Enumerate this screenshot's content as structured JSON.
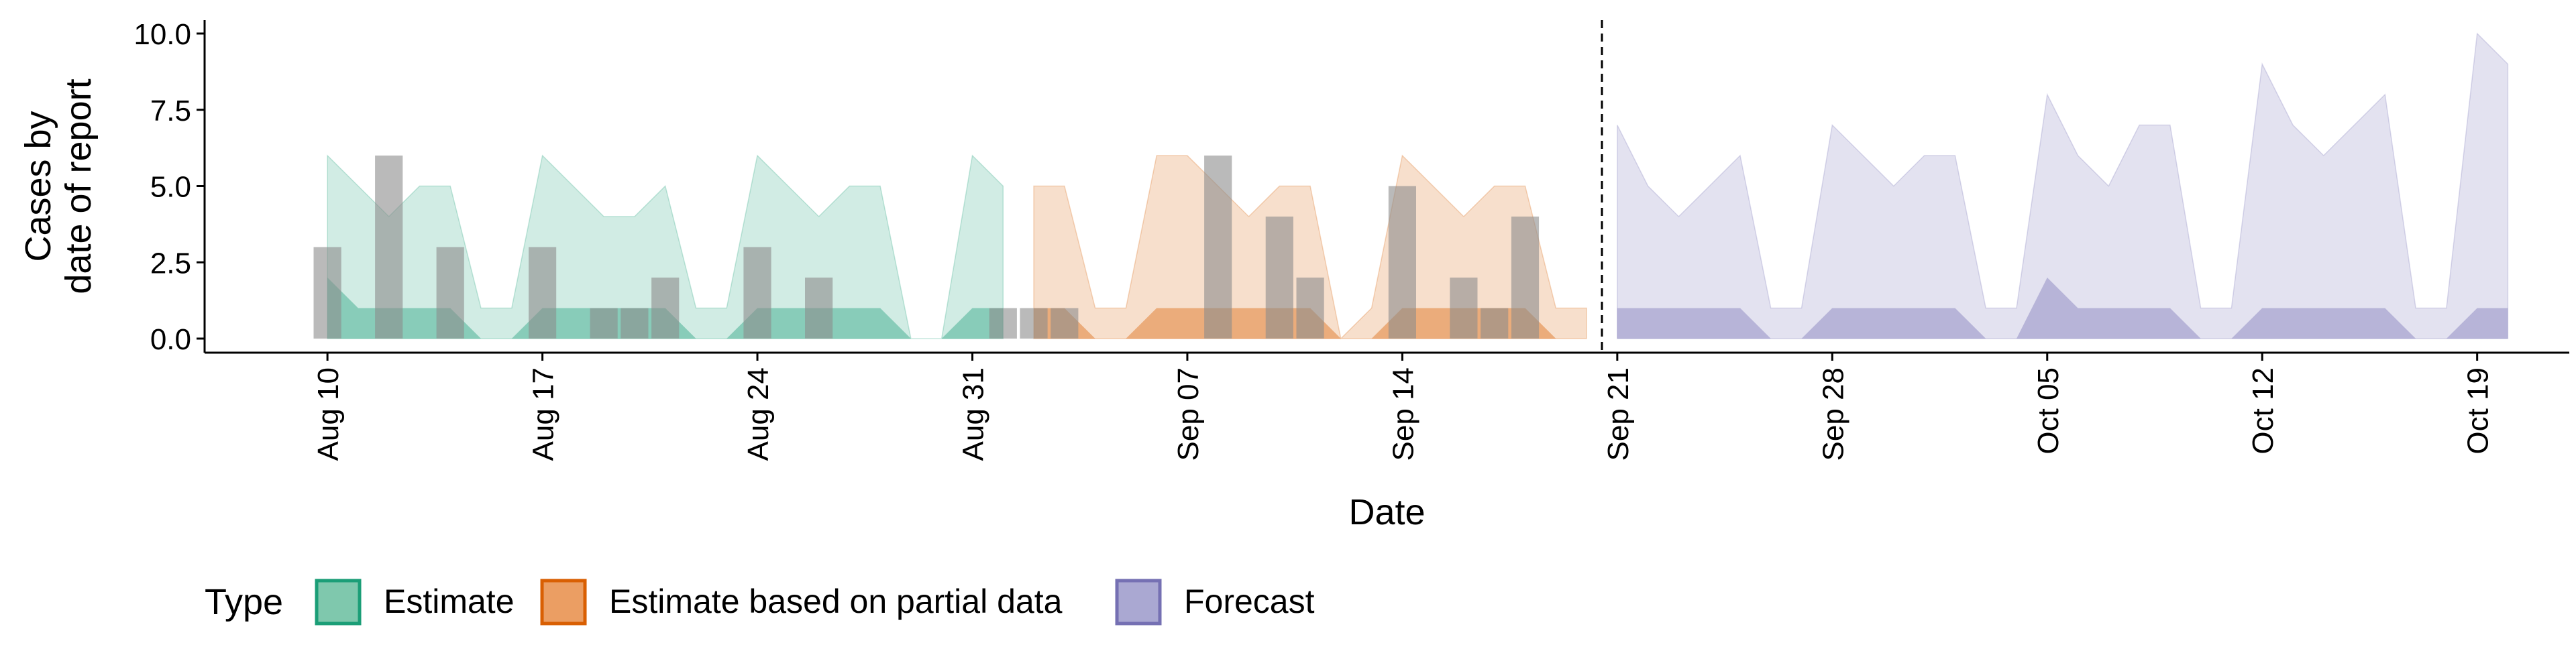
{
  "chart_data": {
    "type": "area",
    "xlabel": "Date",
    "ylabel_lines": [
      "Cases by",
      "date of report"
    ],
    "ylim": [
      0,
      10
    ],
    "y_ticks": [
      0,
      2.5,
      5,
      7.5,
      10
    ],
    "y_tick_labels": [
      "0.0",
      "2.5",
      "5.0",
      "7.5",
      "10.0"
    ],
    "x_range": [
      "2020-08-06",
      "2020-10-22"
    ],
    "x_ticks": [
      "2020-08-10",
      "2020-08-17",
      "2020-08-24",
      "2020-08-31",
      "2020-09-07",
      "2020-09-14",
      "2020-09-21",
      "2020-09-28",
      "2020-10-05",
      "2020-10-12",
      "2020-10-19"
    ],
    "x_tick_labels": [
      "Aug 10",
      "Aug 17",
      "Aug 24",
      "Aug 31",
      "Sep 07",
      "Sep 14",
      "Sep 21",
      "Sep 28",
      "Oct 05",
      "Oct 12",
      "Oct 19"
    ],
    "forecast_date": "2020-09-20",
    "grid": false,
    "legend": {
      "title": "Type",
      "position": "bottom-left",
      "items": [
        {
          "label": "Estimate",
          "fill": "#7fc8ad",
          "stroke": "#1b9e77"
        },
        {
          "label": "Estimate based on partial data",
          "fill": "#eb9e63",
          "stroke": "#d95f02"
        },
        {
          "label": "Forecast",
          "fill": "#aaa8d2",
          "stroke": "#7570b3"
        }
      ]
    },
    "colors": {
      "Estimate": "#1b9e77",
      "Estimate based on partial data": "#d95f02",
      "Forecast": "#7570b3",
      "bars": "#8c8c8c"
    },
    "reported_cases": [
      {
        "date": "2020-08-10",
        "value": 3
      },
      {
        "date": "2020-08-12",
        "value": 6
      },
      {
        "date": "2020-08-14",
        "value": 3
      },
      {
        "date": "2020-08-17",
        "value": 3
      },
      {
        "date": "2020-08-19",
        "value": 1
      },
      {
        "date": "2020-08-20",
        "value": 1
      },
      {
        "date": "2020-08-21",
        "value": 2
      },
      {
        "date": "2020-08-24",
        "value": 3
      },
      {
        "date": "2020-08-26",
        "value": 2
      },
      {
        "date": "2020-09-01",
        "value": 1
      },
      {
        "date": "2020-09-02",
        "value": 1
      },
      {
        "date": "2020-09-03",
        "value": 1
      },
      {
        "date": "2020-09-08",
        "value": 6
      },
      {
        "date": "2020-09-10",
        "value": 4
      },
      {
        "date": "2020-09-11",
        "value": 2
      },
      {
        "date": "2020-09-14",
        "value": 5
      },
      {
        "date": "2020-09-16",
        "value": 2
      },
      {
        "date": "2020-09-17",
        "value": 1
      },
      {
        "date": "2020-09-18",
        "value": 4
      }
    ],
    "series": [
      {
        "name": "Estimate",
        "segments": [
          {
            "x": [
              "2020-08-10",
              "2020-08-11",
              "2020-08-12",
              "2020-08-13",
              "2020-08-14",
              "2020-08-15",
              "2020-08-16",
              "2020-08-17",
              "2020-08-18",
              "2020-08-19",
              "2020-08-20",
              "2020-08-21",
              "2020-08-22",
              "2020-08-23",
              "2020-08-24",
              "2020-08-25",
              "2020-08-26",
              "2020-08-27",
              "2020-08-28",
              "2020-08-29",
              "2020-08-30",
              "2020-08-31",
              "2020-09-01"
            ],
            "upper_90": [
              6,
              5,
              4,
              5,
              5,
              1,
              1,
              6,
              5,
              4,
              4,
              5,
              1,
              1,
              6,
              5,
              4,
              5,
              5,
              0,
              0,
              6,
              5
            ],
            "lower_90": [
              0,
              0,
              0,
              0,
              0,
              0,
              0,
              0,
              0,
              0,
              0,
              0,
              0,
              0,
              0,
              0,
              0,
              0,
              0,
              0,
              0,
              0,
              0
            ],
            "upper_50": [
              2,
              1,
              1,
              1,
              1,
              0,
              0,
              1,
              1,
              1,
              1,
              1,
              0,
              0,
              1,
              1,
              1,
              1,
              1,
              0,
              0,
              1,
              1
            ],
            "lower_50": [
              0,
              0,
              0,
              0,
              0,
              0,
              0,
              0,
              0,
              0,
              0,
              0,
              0,
              0,
              0,
              0,
              0,
              0,
              0,
              0,
              0,
              0,
              0
            ]
          }
        ]
      },
      {
        "name": "Estimate based on partial data",
        "segments": [
          {
            "x": [
              "2020-09-02",
              "2020-09-03",
              "2020-09-04",
              "2020-09-05",
              "2020-09-06",
              "2020-09-07",
              "2020-09-08",
              "2020-09-09",
              "2020-09-10",
              "2020-09-11",
              "2020-09-12",
              "2020-09-13",
              "2020-09-14",
              "2020-09-15",
              "2020-09-16",
              "2020-09-17",
              "2020-09-18",
              "2020-09-19",
              "2020-09-20"
            ],
            "upper_90": [
              5,
              5,
              1,
              1,
              6,
              6,
              5,
              4,
              5,
              5,
              0,
              1,
              6,
              5,
              4,
              5,
              5,
              1,
              1
            ],
            "lower_90": [
              0,
              0,
              0,
              0,
              0,
              0,
              0,
              0,
              0,
              0,
              0,
              0,
              0,
              0,
              0,
              0,
              0,
              0,
              0
            ],
            "upper_50": [
              1,
              1,
              0,
              0,
              1,
              1,
              1,
              1,
              1,
              1,
              0,
              0,
              1,
              1,
              1,
              1,
              1,
              0,
              0
            ],
            "lower_50": [
              0,
              0,
              0,
              0,
              0,
              0,
              0,
              0,
              0,
              0,
              0,
              0,
              0,
              0,
              0,
              0,
              0,
              0,
              0
            ]
          }
        ]
      },
      {
        "name": "Forecast",
        "segments": [
          {
            "x": [
              "2020-09-21",
              "2020-09-22",
              "2020-09-23",
              "2020-09-24",
              "2020-09-25",
              "2020-09-26",
              "2020-09-27",
              "2020-09-28",
              "2020-09-29",
              "2020-09-30",
              "2020-10-01",
              "2020-10-02",
              "2020-10-03",
              "2020-10-04",
              "2020-10-05",
              "2020-10-06",
              "2020-10-07",
              "2020-10-08",
              "2020-10-09",
              "2020-10-10",
              "2020-10-11",
              "2020-10-12",
              "2020-10-13",
              "2020-10-14",
              "2020-10-15",
              "2020-10-16",
              "2020-10-17",
              "2020-10-18",
              "2020-10-19",
              "2020-10-20"
            ],
            "upper_90": [
              7,
              5,
              4,
              5,
              6,
              1,
              1,
              7,
              6,
              5,
              6,
              6,
              1,
              1,
              8,
              6,
              5,
              7,
              7,
              1,
              1,
              9,
              7,
              6,
              7,
              8,
              1,
              1,
              10,
              9
            ],
            "lower_90": [
              0,
              0,
              0,
              0,
              0,
              0,
              0,
              0,
              0,
              0,
              0,
              0,
              0,
              0,
              0,
              0,
              0,
              0,
              0,
              0,
              0,
              0,
              0,
              0,
              0,
              0,
              0,
              0,
              0,
              0
            ],
            "upper_50": [
              1,
              1,
              1,
              1,
              1,
              0,
              0,
              1,
              1,
              1,
              1,
              1,
              0,
              0,
              2,
              1,
              1,
              1,
              1,
              0,
              0,
              1,
              1,
              1,
              1,
              1,
              0,
              0,
              1,
              1
            ],
            "lower_50": [
              0,
              0,
              0,
              0,
              0,
              0,
              0,
              0,
              0,
              0,
              0,
              0,
              0,
              0,
              0,
              0,
              0,
              0,
              0,
              0,
              0,
              0,
              0,
              0,
              0,
              0,
              0,
              0,
              0,
              0
            ]
          }
        ]
      }
    ]
  }
}
